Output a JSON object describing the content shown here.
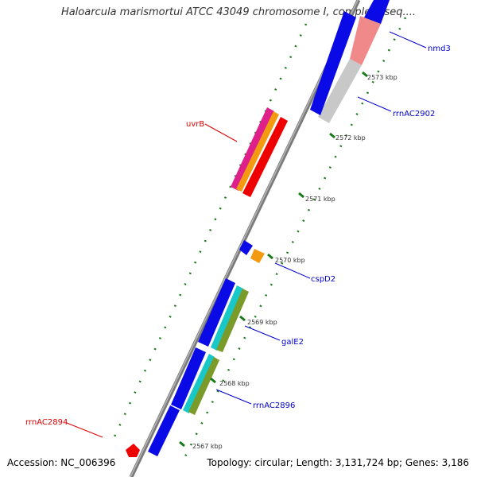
{
  "title": "Haloarcula marismortui ATCC 43049 chromosome I, complete seq....",
  "footer": {
    "accession": "Accession: NC_006396",
    "summary": "Topology: circular; Length: 3,131,724 bp; Genes: 3,186"
  },
  "colors": {
    "backbone": "#7a7a7a",
    "tick": "#1a7a1a",
    "forward_label": "#0000cc",
    "reverse_label": "#dd0000",
    "blue_gene": "#0a0ae6",
    "red_gene": "#ee0000",
    "magenta_gene": "#e0208a",
    "orange_gene": "#f39a10",
    "cyan_gene": "#18c8c8",
    "olive_gene": "#7a9a2a",
    "pink_gene": "#f08a8a",
    "grey_gene": "#c8c8c8"
  },
  "ticks": [
    "2573 kbp",
    "2572 kbp",
    "2571 kbp",
    "2570 kbp",
    "2569 kbp",
    "2568 kbp",
    "2567 kbp"
  ],
  "labels": [
    "nmd3",
    "rrnAC2902",
    "uvrB",
    "cspD2",
    "galE2",
    "rrnAC2896",
    "rrnAC2894"
  ]
}
